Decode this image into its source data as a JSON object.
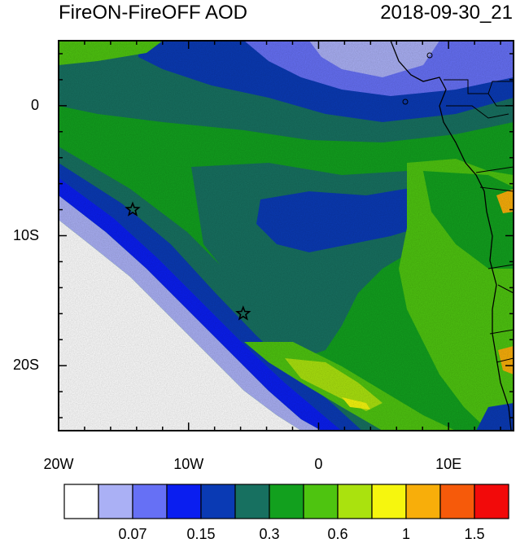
{
  "title": "FireON-FireOFF AOD",
  "timestamp": "2018-09-30_21",
  "y_ticks": [
    {
      "label": "0",
      "lat": 0
    },
    {
      "label": "10S",
      "lat": -10
    },
    {
      "label": "20S",
      "lat": -20
    }
  ],
  "x_ticks": [
    {
      "label": "20W",
      "lon": -20
    },
    {
      "label": "10W",
      "lon": -10
    },
    {
      "label": "0",
      "lon": 0
    },
    {
      "label": "10E",
      "lon": 10
    }
  ],
  "markers": [
    {
      "type": "star",
      "lon": -14.3,
      "lat": -8.0
    },
    {
      "type": "star",
      "lon": -5.8,
      "lat": -16.0
    }
  ],
  "colorbar": {
    "colors": [
      "#ffffff",
      "#aab0f5",
      "#6670f5",
      "#0a1ef0",
      "#0a3ab4",
      "#177060",
      "#12a01e",
      "#4ec410",
      "#aae20e",
      "#f6f60e",
      "#f8ae0a",
      "#f65a0a",
      "#f20a0a"
    ],
    "labels": [
      {
        "text": "0.07",
        "after_bin": 2
      },
      {
        "text": "0.15",
        "after_bin": 4
      },
      {
        "text": "0.3",
        "after_bin": 6
      },
      {
        "text": "0.6",
        "after_bin": 8
      },
      {
        "text": "1",
        "after_bin": 10
      },
      {
        "text": "1.5",
        "after_bin": 12
      }
    ]
  }
}
